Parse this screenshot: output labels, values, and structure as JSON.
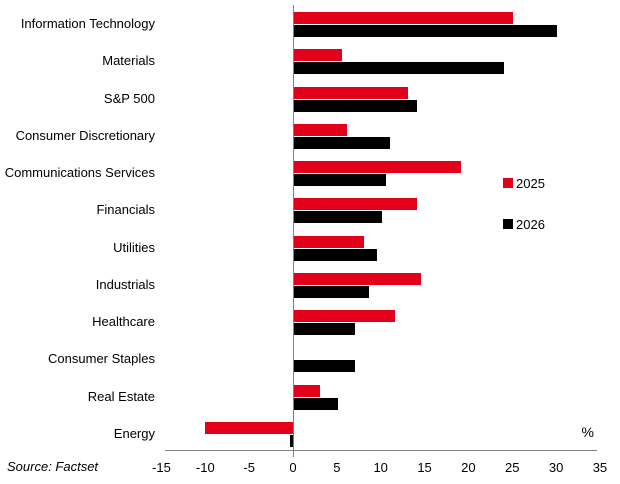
{
  "chart_data": {
    "type": "bar",
    "orientation": "horizontal",
    "title": "",
    "xlabel": "%",
    "ylabel": "",
    "xlim": [
      -15,
      35
    ],
    "xticks": [
      -15,
      -10,
      -5,
      0,
      5,
      10,
      15,
      20,
      25,
      30,
      35
    ],
    "grid": false,
    "legend_position": "right-middle",
    "categories": [
      "Information Technology",
      "Materials",
      "S&P 500",
      "Consumer Discretionary",
      "Communications Services",
      "Financials",
      "Utilities",
      "Industrials",
      "Healthcare",
      "Consumer Staples",
      "Real Estate",
      "Energy"
    ],
    "series": [
      {
        "name": "2025",
        "color": "#e2001a",
        "values": [
          25,
          5.5,
          13,
          6,
          19,
          14,
          8,
          14.5,
          11.5,
          0,
          3,
          -10
        ]
      },
      {
        "name": "2026",
        "color": "#000000",
        "values": [
          30,
          24,
          14,
          11,
          10.5,
          10,
          9.5,
          8.5,
          7,
          7,
          5,
          -0.3
        ]
      }
    ],
    "source": "Source: Factset"
  },
  "legend": {
    "items": [
      {
        "label": "2025",
        "color": "#e2001a"
      },
      {
        "label": "2026",
        "color": "#000000"
      }
    ]
  },
  "axis": {
    "unit_label": "%",
    "tick_labels": [
      "-15",
      "-10",
      "-5",
      "0",
      "5",
      "10",
      "15",
      "20",
      "25",
      "30",
      "35"
    ],
    "line_color": "#808080"
  },
  "footer": {
    "source": "Source: Factset"
  }
}
